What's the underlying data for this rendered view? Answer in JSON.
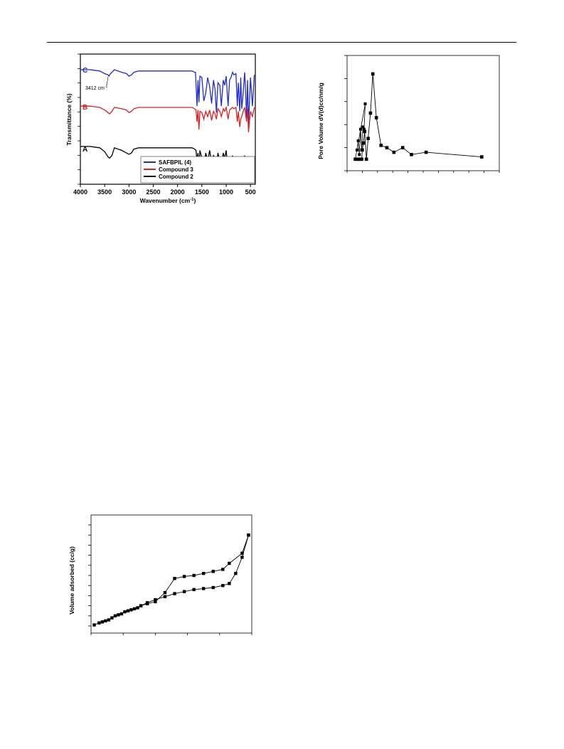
{
  "chart_data": [
    {
      "type": "line",
      "xlabel": "Wavenumber (cm",
      "xlabel_sup": "-1",
      "xlabel_close": ")",
      "ylabel": "Transmittance (%)",
      "xlim": [
        4000,
        400
      ],
      "x_reversed": true,
      "xticks": [
        4000,
        3500,
        3000,
        2500,
        2000,
        1500,
        1000,
        500
      ],
      "annotation": {
        "text": "3412 cm",
        "sup": "-1",
        "x": 3412
      },
      "series_labels": [
        "C",
        "B",
        "A"
      ],
      "legend": {
        "placement": "bottom-right",
        "entries": [
          {
            "name": "SAFBPIL (4)",
            "color": "#1f2bd6"
          },
          {
            "name": "Compound 3",
            "color": "#e02020"
          },
          {
            "name": "Compound 2",
            "color": "#000000"
          }
        ]
      },
      "series": [
        {
          "name": "SAFBPIL (4)",
          "color": "#1f2bd6",
          "offset": 90,
          "x": [
            4000,
            3800,
            3600,
            3500,
            3430,
            3412,
            3380,
            3300,
            3150,
            3050,
            3000,
            2950,
            2900,
            2800,
            2600,
            2400,
            2200,
            2100,
            2000,
            1900,
            1800,
            1700,
            1650,
            1630,
            1600,
            1580,
            1560,
            1540,
            1500,
            1460,
            1420,
            1380,
            1340,
            1300,
            1260,
            1230,
            1200,
            1170,
            1130,
            1100,
            1060,
            1030,
            1000,
            960,
            930,
            900,
            870,
            840,
            800,
            770,
            750,
            720,
            700,
            680,
            650,
            620,
            600,
            580,
            560,
            540,
            500,
            460,
            420
          ],
          "y": [
            88,
            88,
            87,
            85,
            84,
            83,
            85,
            88,
            86,
            85,
            83,
            84,
            86,
            87,
            87,
            87,
            87,
            87,
            87,
            87,
            87,
            87,
            86,
            86,
            60,
            80,
            63,
            83,
            82,
            64,
            70,
            82,
            75,
            62,
            80,
            73,
            55,
            78,
            76,
            60,
            80,
            76,
            83,
            60,
            80,
            82,
            86,
            84,
            85,
            60,
            78,
            56,
            82,
            58,
            70,
            86,
            72,
            50,
            80,
            46,
            82,
            60,
            84
          ]
        },
        {
          "name": "Compound 3",
          "color": "#e02020",
          "offset": 90,
          "x": [
            4000,
            3800,
            3600,
            3500,
            3430,
            3400,
            3350,
            3300,
            3150,
            3050,
            3000,
            2950,
            2900,
            2800,
            2600,
            2400,
            2200,
            2100,
            2000,
            1900,
            1800,
            1700,
            1650,
            1620,
            1600,
            1580,
            1560,
            1540,
            1500,
            1460,
            1420,
            1380,
            1340,
            1300,
            1260,
            1230,
            1200,
            1170,
            1130,
            1100,
            1060,
            1030,
            1000,
            960,
            930,
            900,
            870,
            840,
            800,
            770,
            750,
            720,
            700,
            680,
            650,
            620,
            600,
            580,
            560,
            540,
            500,
            460,
            420
          ],
          "y": [
            60,
            60,
            59,
            57,
            55,
            54,
            56,
            59,
            58,
            57,
            55,
            56,
            58,
            59,
            59,
            59,
            59,
            59,
            59,
            59,
            59,
            59,
            58,
            57,
            48,
            57,
            42,
            56,
            55,
            50,
            56,
            52,
            57,
            49,
            56,
            54,
            50,
            58,
            56,
            52,
            58,
            56,
            59,
            50,
            57,
            58,
            59,
            58,
            59,
            48,
            56,
            44,
            50,
            52,
            56,
            59,
            54,
            48,
            58,
            40,
            56,
            52,
            59
          ]
        },
        {
          "name": "Compound 2",
          "color": "#000000",
          "offset": 90,
          "x": [
            4000,
            3800,
            3600,
            3500,
            3430,
            3400,
            3350,
            3300,
            3150,
            3050,
            3000,
            2950,
            2900,
            2800,
            2600,
            2400,
            2200,
            2100,
            2000,
            1900,
            1800,
            1700,
            1650,
            1620,
            1600,
            1580,
            1560,
            1540,
            1500,
            1460,
            1420,
            1380,
            1340,
            1300,
            1260,
            1230,
            1200,
            1170,
            1130,
            1100,
            1060,
            1030,
            1000,
            960,
            930,
            900,
            870,
            840,
            800,
            770,
            750,
            720,
            700,
            680,
            650,
            620,
            600,
            580,
            560,
            540,
            500,
            460,
            420
          ],
          "y": [
            29,
            29,
            28,
            25,
            21,
            20,
            22,
            28,
            26,
            24,
            23,
            24,
            27,
            28,
            28,
            28,
            28,
            28,
            28,
            28,
            28,
            28,
            27,
            26,
            18,
            24,
            14,
            26,
            20,
            12,
            24,
            18,
            26,
            16,
            22,
            20,
            14,
            24,
            18,
            14,
            24,
            20,
            26,
            10,
            18,
            16,
            22,
            12,
            20,
            6,
            14,
            2,
            10,
            4,
            16,
            22,
            12,
            6,
            18,
            4,
            16,
            10,
            20
          ]
        }
      ]
    },
    {
      "type": "line",
      "xlabel": "",
      "ylabel": "Pore Volume dV(d)cc/nm/g",
      "x": [
        0.14,
        0.17,
        0.19,
        0.21,
        0.23,
        0.25,
        0.26,
        0.28,
        0.3,
        0.33,
        0.36,
        0.4,
        0.44,
        0.5,
        0.58,
        0.68,
        0.8,
        0.95,
        1.1,
        1.35,
        2.3
      ],
      "y": [
        0.1,
        0.1,
        0.1,
        0.1,
        0.1,
        0.1,
        0.18,
        0.24,
        0.34,
        0.1,
        0.28,
        0.5,
        0.84,
        0.46,
        0.22,
        0.2,
        0.16,
        0.2,
        0.14,
        0.16,
        0.12
      ],
      "jagged_points": [
        [
          0.17,
          0.18
        ],
        [
          0.19,
          0.26
        ],
        [
          0.21,
          0.14
        ],
        [
          0.23,
          0.36
        ],
        [
          0.25,
          0.18
        ],
        [
          0.27,
          0.38
        ],
        [
          0.29,
          0.36
        ],
        [
          0.31,
          0.58
        ]
      ],
      "xlim": [
        0,
        2.6
      ],
      "ylim": [
        0,
        1.0
      ],
      "marker": "square",
      "color": "#000000"
    },
    {
      "type": "line",
      "xlabel": "",
      "ylabel": "Volume adsorbed (cc/g)",
      "xlim": [
        0,
        1.0
      ],
      "ylim": [
        0,
        100
      ],
      "marker": "square",
      "color": "#000000",
      "series": [
        {
          "name": "adsorption",
          "x": [
            0.02,
            0.05,
            0.07,
            0.09,
            0.11,
            0.13,
            0.15,
            0.17,
            0.19,
            0.21,
            0.23,
            0.25,
            0.27,
            0.29,
            0.31,
            0.35,
            0.4,
            0.46,
            0.52,
            0.58,
            0.64,
            0.7,
            0.76,
            0.82,
            0.86,
            0.9,
            0.94,
            0.98
          ],
          "y": [
            1,
            3,
            4,
            5,
            6,
            8,
            10,
            11,
            12,
            14,
            15,
            16,
            17,
            18,
            20,
            23,
            26,
            29,
            32,
            34,
            36,
            37,
            38,
            40,
            42,
            52,
            68,
            90
          ]
        },
        {
          "name": "desorption",
          "x": [
            0.98,
            0.94,
            0.86,
            0.82,
            0.76,
            0.7,
            0.64,
            0.58,
            0.52,
            0.46,
            0.4,
            0.35,
            0.31
          ],
          "y": [
            90,
            72,
            62,
            56,
            54,
            52,
            50,
            49,
            47,
            33,
            24,
            22,
            20
          ]
        }
      ]
    }
  ]
}
